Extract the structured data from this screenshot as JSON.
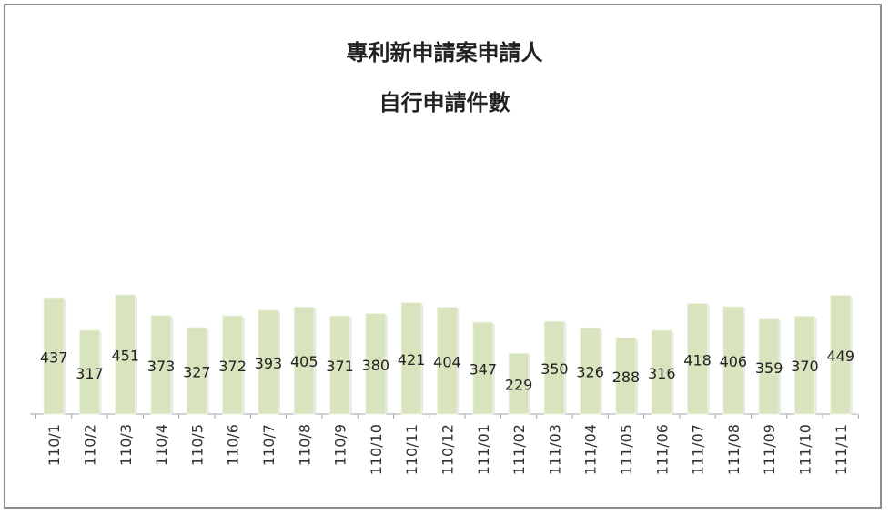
{
  "chart_data": {
    "type": "bar",
    "title_lines": [
      "專利新申請案申請人",
      "自行申請件數"
    ],
    "categories": [
      "110/1",
      "110/2",
      "110/3",
      "110/4",
      "110/5",
      "110/6",
      "110/7",
      "110/8",
      "110/9",
      "110/10",
      "110/11",
      "110/12",
      "111/01",
      "111/02",
      "111/03",
      "111/04",
      "111/05",
      "111/06",
      "111/07",
      "111/08",
      "111/09",
      "111/10",
      "111/11"
    ],
    "values": [
      437,
      317,
      451,
      373,
      327,
      372,
      393,
      405,
      371,
      380,
      421,
      404,
      347,
      229,
      350,
      326,
      288,
      316,
      418,
      406,
      359,
      370,
      449
    ],
    "bar_color": "#d7e4bd",
    "xlabel": "",
    "ylabel": "",
    "grid": false,
    "legend": "none"
  }
}
